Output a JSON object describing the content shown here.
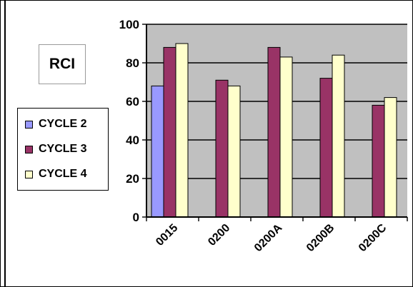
{
  "box_label": "RCI",
  "colors": {
    "plot_bg": "#c0c0c0",
    "grid": "#000000",
    "series": [
      "#9999ff",
      "#993366",
      "#ffffcc"
    ]
  },
  "chart_data": {
    "type": "bar",
    "categories": [
      "0015",
      "0200",
      "0200A",
      "0200B",
      "0200C"
    ],
    "series": [
      {
        "name": "CYCLE 2",
        "values": [
          68,
          null,
          null,
          null,
          null
        ]
      },
      {
        "name": "CYCLE 3",
        "values": [
          88,
          71,
          88,
          72,
          58
        ]
      },
      {
        "name": "CYCLE 4",
        "values": [
          90,
          68,
          83,
          84,
          62
        ]
      }
    ],
    "ylim": [
      0,
      100
    ],
    "yticks": [
      0,
      20,
      40,
      60,
      80,
      100
    ],
    "grid": true,
    "legend_position": "left"
  }
}
